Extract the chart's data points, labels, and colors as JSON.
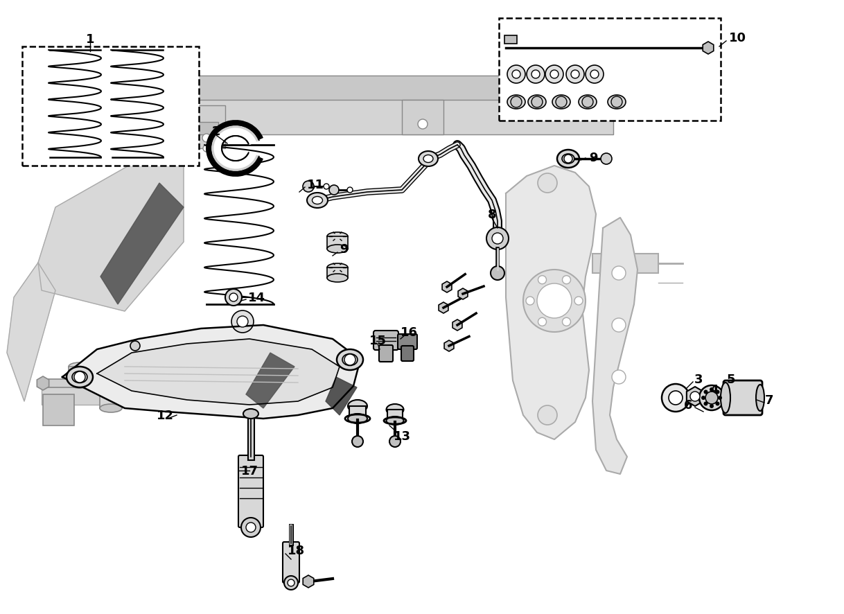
{
  "bg_color": "#ffffff",
  "lc": "#000000",
  "gray1": "#d8d8d8",
  "gray2": "#ebebeb",
  "gray3": "#c0c0c0",
  "fs": 13,
  "fw": "bold"
}
